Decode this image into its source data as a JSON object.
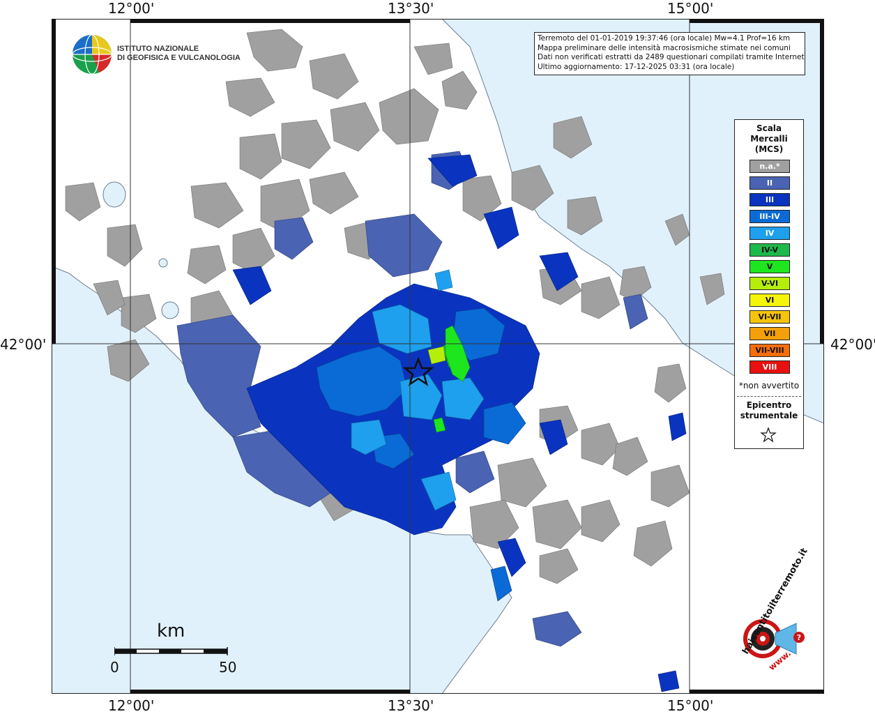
{
  "coordinates": {
    "top": [
      "12°00'",
      "13°30'",
      "15°00'"
    ],
    "bottom": [
      "12°00'",
      "13°30'",
      "15°00'"
    ],
    "left": "42°00'",
    "right": "42°00'"
  },
  "info_box": {
    "line1": "Terremoto del 01-01-2019 19:37:46 (ora locale) Mw=4.1 Prof=16 km",
    "line2": "Mappa preliminare delle intensità macrosismiche stimate nei comuni",
    "line3": "Dati non verificati estratti da 2489 questionari compilati tramite Internet.",
    "line4": "Ultimo aggiornamento: 17-12-2025 03:31 (ora locale)"
  },
  "ingv": {
    "line1": "ISTITUTO NAZIONALE",
    "line2": "DI GEOFISICA E VULCANOLOGIA"
  },
  "legend": {
    "title1": "Scala",
    "title2": "Mercalli",
    "title3": "(MCS)",
    "items": [
      {
        "label": "n.a.*",
        "color": "#a0a0a0",
        "text_color": "#ffffff"
      },
      {
        "label": "II",
        "color": "#4a63b3",
        "text_color": "#ffffff"
      },
      {
        "label": "III",
        "color": "#0a34bf",
        "text_color": "#ffffff"
      },
      {
        "label": "III-IV",
        "color": "#0a6bd6",
        "text_color": "#ffffff"
      },
      {
        "label": "IV",
        "color": "#1ea0ee",
        "text_color": "#ffffff"
      },
      {
        "label": "IV-V",
        "color": "#1fb84a",
        "text_color": "#111111"
      },
      {
        "label": "V",
        "color": "#1ee61e",
        "text_color": "#111111"
      },
      {
        "label": "V-VI",
        "color": "#b5ee0a",
        "text_color": "#111111"
      },
      {
        "label": "VI",
        "color": "#f5f50a",
        "text_color": "#111111"
      },
      {
        "label": "VI-VII",
        "color": "#f5c40a",
        "text_color": "#111111"
      },
      {
        "label": "VII",
        "color": "#f5a00a",
        "text_color": "#111111"
      },
      {
        "label": "VII-VIII",
        "color": "#f56e0a",
        "text_color": "#111111"
      },
      {
        "label": "VIII",
        "color": "#e81010",
        "text_color": "#ffffff"
      }
    ],
    "note": "*non avvertito",
    "epicentre1": "Epicentro",
    "epicentre2": "strumentale"
  },
  "scale_bar": {
    "unit": "km",
    "start": "0",
    "end": "50"
  },
  "hsi_logo": {
    "text": "haisentitoilterremoto.it",
    "url_text": "www."
  },
  "colors": {
    "sea": "#e1f1fc",
    "land": "#ffffff",
    "not_felt": "#a0a0a0"
  }
}
